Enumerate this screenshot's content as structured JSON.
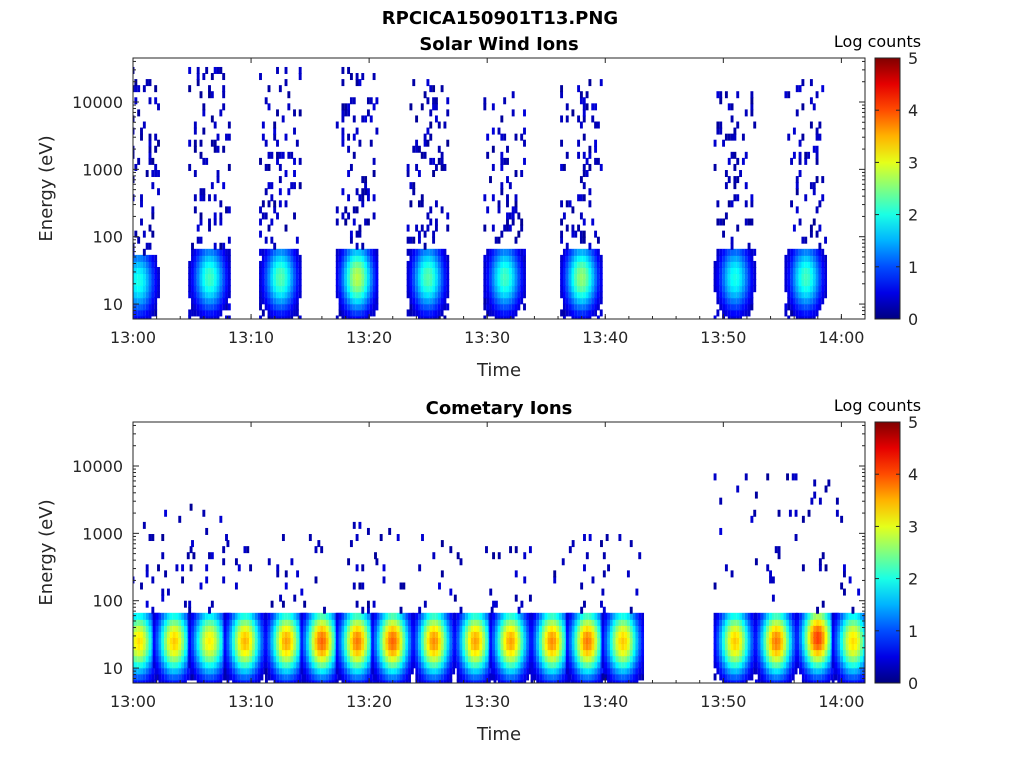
{
  "figure_title": "RPCICA150901T13.PNG",
  "chart_data": [
    {
      "type": "heatmap",
      "title": "Solar Wind Ions",
      "xlabel": "Time",
      "ylabel": "Energy (eV)",
      "x_ticks": [
        "13:00",
        "13:10",
        "13:20",
        "13:30",
        "13:40",
        "13:50",
        "14:00"
      ],
      "xlim": [
        "13:00",
        "14:02"
      ],
      "y_scale": "log",
      "y_ticks": [
        10,
        100,
        1000,
        10000
      ],
      "y_tick_labels": [
        "10",
        "100",
        "1000",
        "10000"
      ],
      "ylim": [
        6,
        45000
      ],
      "colorbar": {
        "label": "Log counts",
        "range": [
          0,
          5
        ],
        "ticks": [
          0,
          1,
          2,
          3,
          4,
          5
        ],
        "colormap": "jet"
      },
      "bursts": [
        {
          "center": "13:00.5",
          "peak_energy": 22,
          "peak_log_counts": 2.0,
          "max_energy": 30000
        },
        {
          "center": "13:06.5",
          "peak_energy": 25,
          "peak_log_counts": 2.2,
          "max_energy": 30000
        },
        {
          "center": "13:12.5",
          "peak_energy": 25,
          "peak_log_counts": 2.3,
          "max_energy": 30000
        },
        {
          "center": "13:19.0",
          "peak_energy": 25,
          "peak_log_counts": 2.8,
          "max_energy": 30000
        },
        {
          "center": "13:25.0",
          "peak_energy": 25,
          "peak_log_counts": 2.3,
          "max_energy": 20000
        },
        {
          "center": "13:31.5",
          "peak_energy": 25,
          "peak_log_counts": 2.2,
          "max_energy": 15000
        },
        {
          "center": "13:38.0",
          "peak_energy": 25,
          "peak_log_counts": 2.6,
          "max_energy": 20000
        },
        {
          "center": "13:51.0",
          "peak_energy": 25,
          "peak_log_counts": 2.0,
          "max_energy": 15000
        },
        {
          "center": "13:57.0",
          "peak_energy": 25,
          "peak_log_counts": 2.2,
          "max_energy": 25000
        }
      ]
    },
    {
      "type": "heatmap",
      "title": "Cometary Ions",
      "xlabel": "Time",
      "ylabel": "Energy (eV)",
      "x_ticks": [
        "13:00",
        "13:10",
        "13:20",
        "13:30",
        "13:40",
        "13:50",
        "14:00"
      ],
      "xlim": [
        "13:00",
        "14:02"
      ],
      "y_scale": "log",
      "y_ticks": [
        10,
        100,
        1000,
        10000
      ],
      "y_tick_labels": [
        "10",
        "100",
        "1000",
        "10000"
      ],
      "ylim": [
        6,
        45000
      ],
      "colorbar": {
        "label": "Log counts",
        "range": [
          0,
          5
        ],
        "ticks": [
          0,
          1,
          2,
          3,
          4,
          5
        ],
        "colormap": "jet"
      },
      "bursts": [
        {
          "center": "13:00.5",
          "peak_energy": 25,
          "peak_log_counts": 3.3,
          "max_energy": 1500
        },
        {
          "center": "13:03.5",
          "peak_energy": 25,
          "peak_log_counts": 3.4,
          "max_energy": 2500
        },
        {
          "center": "13:06.5",
          "peak_energy": 25,
          "peak_log_counts": 3.2,
          "max_energy": 2500
        },
        {
          "center": "13:09.5",
          "peak_energy": 25,
          "peak_log_counts": 3.5,
          "max_energy": 1000
        },
        {
          "center": "13:13.0",
          "peak_energy": 25,
          "peak_log_counts": 3.6,
          "max_energy": 1000
        },
        {
          "center": "13:16.0",
          "peak_energy": 25,
          "peak_log_counts": 3.9,
          "max_energy": 1000
        },
        {
          "center": "13:19.0",
          "peak_energy": 25,
          "peak_log_counts": 3.8,
          "max_energy": 1500
        },
        {
          "center": "13:22.0",
          "peak_energy": 25,
          "peak_log_counts": 3.9,
          "max_energy": 1200
        },
        {
          "center": "13:25.5",
          "peak_energy": 25,
          "peak_log_counts": 3.7,
          "max_energy": 1000
        },
        {
          "center": "13:29.0",
          "peak_energy": 25,
          "peak_log_counts": 3.6,
          "max_energy": 700
        },
        {
          "center": "13:32.0",
          "peak_energy": 25,
          "peak_log_counts": 3.6,
          "max_energy": 800
        },
        {
          "center": "13:35.5",
          "peak_energy": 25,
          "peak_log_counts": 3.7,
          "max_energy": 700
        },
        {
          "center": "13:38.5",
          "peak_energy": 25,
          "peak_log_counts": 3.8,
          "max_energy": 1000
        },
        {
          "center": "13:41.5",
          "peak_energy": 25,
          "peak_log_counts": 3.4,
          "max_energy": 1000
        },
        {
          "center": "13:51.0",
          "peak_energy": 25,
          "peak_log_counts": 3.4,
          "max_energy": 7000
        },
        {
          "center": "13:54.5",
          "peak_energy": 25,
          "peak_log_counts": 3.8,
          "max_energy": 7000
        },
        {
          "center": "13:58.0",
          "peak_energy": 28,
          "peak_log_counts": 4.1,
          "max_energy": 11000
        },
        {
          "center": "14:01.0",
          "peak_energy": 25,
          "peak_log_counts": 3.3,
          "max_energy": 2500
        }
      ]
    }
  ]
}
